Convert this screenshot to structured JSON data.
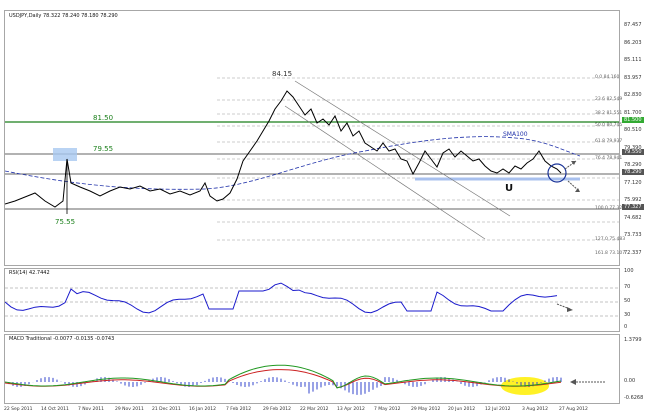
{
  "main": {
    "title": "USDJPY,Daily  78.322 78.240 78.180 78.290",
    "levels": {
      "lv8150": "81.50",
      "lv7955": "79.55",
      "lv8415": "84.15",
      "lv7555": "75.55"
    },
    "sma_label": "SMA100",
    "fib_labels": [
      "0.0  84.160",
      "23.6  82.549",
      "38.2  81.551",
      "50.0  80.745",
      "61.8  79.937",
      "76.4  78.941",
      "100.0  77.327",
      "127.0  75.483",
      "161.8  73.107"
    ],
    "price_axis": [
      "87.457",
      "86.203",
      "85.111",
      "83.957",
      "82.830",
      "81.700",
      "80.510",
      "79.390",
      "78.290",
      "77.120",
      "75.992",
      "74.682",
      "73.733",
      "72.337"
    ],
    "tags": {
      "t1": "81.500",
      "t2": "79.550",
      "t3": "78.290",
      "t4": "77.327"
    },
    "colors": {
      "green": "#1a7f1a",
      "blue": "#2233aa",
      "tag_green": "#33aa33",
      "tag_gray": "#555555"
    }
  },
  "rsi": {
    "title": "RSI(14) 42.7442",
    "axis": [
      "100",
      "70",
      "50",
      "30",
      "0"
    ]
  },
  "macd": {
    "title": "MACD Traditional -0.0077 -0.0135 -0.0743",
    "axis": [
      "1.3799",
      "0.00",
      "-0.6268"
    ]
  },
  "date_axis": [
    "22 Sep 2011",
    "14 Oct 2011",
    "7 Nov 2011",
    "29 Nov 2011",
    "21 Dec 2011",
    "16 Jan 2012",
    "7 Feb 2012",
    "29 Feb 2012",
    "22 Mar 2012",
    "13 Apr 2012",
    "7 May 2012",
    "29 May 2012",
    "20 Jun 2012",
    "12 Jul 2012",
    "3 Aug 2012",
    "27 Aug 2012"
  ]
}
